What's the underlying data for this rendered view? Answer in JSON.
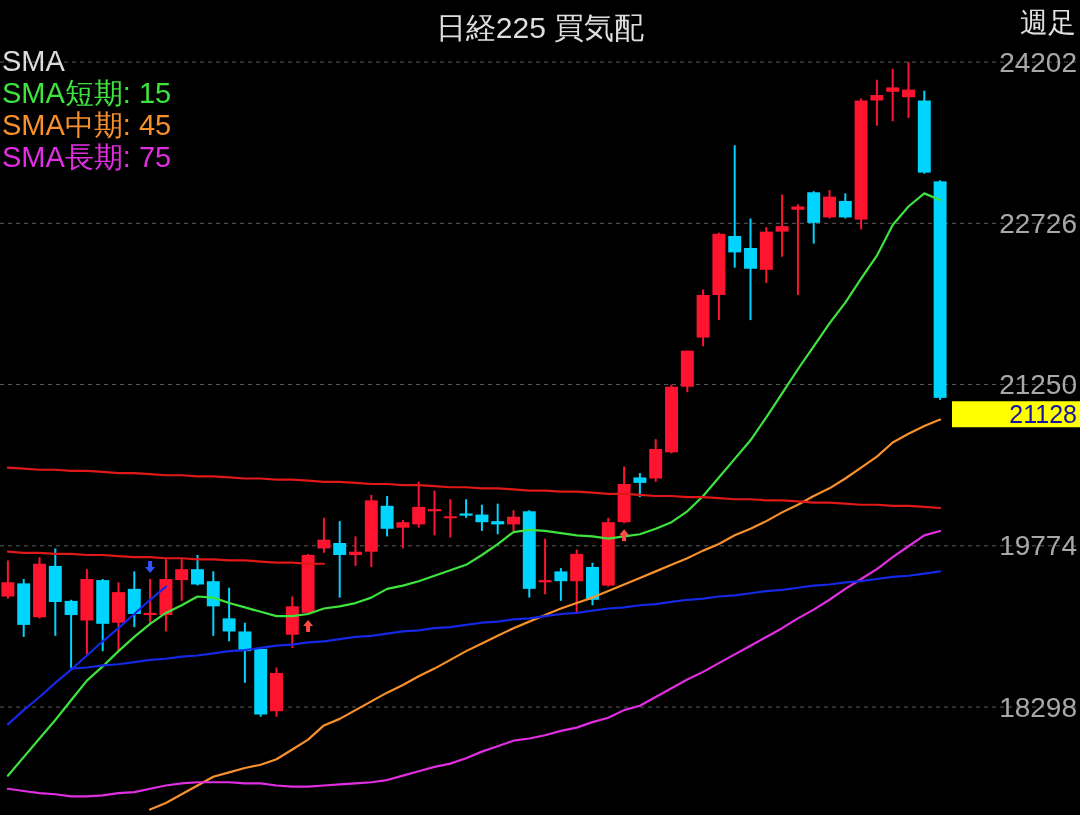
{
  "chart_data": {
    "type": "candlestick",
    "title": "日経225 買気配",
    "subtitle": "週足",
    "legend_title": "SMA",
    "legend": "top left",
    "grid": "y",
    "tick_labels": "y",
    "categories": [
      null,
      null,
      null,
      null,
      null,
      null,
      null,
      null,
      null,
      null,
      null,
      null,
      null,
      null,
      null,
      null,
      null,
      null,
      null,
      null,
      null,
      null,
      null,
      null,
      null,
      null,
      null,
      null,
      null,
      null,
      null,
      null,
      null,
      null,
      null,
      null,
      null,
      null,
      null,
      null,
      null,
      null,
      null,
      null,
      null,
      null,
      null,
      null,
      null,
      null,
      null,
      null,
      null,
      null,
      null,
      null,
      null,
      null,
      null,
      null
    ],
    "ohlc": [
      [
        19310,
        19640,
        19290,
        19440
      ],
      [
        19430,
        19470,
        18940,
        19050
      ],
      [
        19120,
        19670,
        19110,
        19610
      ],
      [
        19590,
        19750,
        18950,
        19260
      ],
      [
        19270,
        19280,
        18650,
        19140
      ],
      [
        19090,
        19560,
        18780,
        19470
      ],
      [
        19460,
        19470,
        18810,
        19060
      ],
      [
        19070,
        19440,
        18810,
        19350
      ],
      [
        19380,
        19540,
        19030,
        19150
      ],
      [
        19140,
        19470,
        19060,
        19160
      ],
      [
        19140,
        19660,
        18990,
        19470
      ],
      [
        19460,
        19660,
        19270,
        19560
      ],
      [
        19560,
        19690,
        19410,
        19420
      ],
      [
        19450,
        19540,
        18950,
        19220
      ],
      [
        19110,
        19390,
        18900,
        18990
      ],
      [
        18990,
        19070,
        18520,
        18810
      ],
      [
        18830,
        18840,
        18210,
        18230
      ],
      [
        18260,
        18660,
        18210,
        18610
      ],
      [
        18960,
        19310,
        18840,
        19220
      ],
      [
        19160,
        19700,
        19150,
        19690
      ],
      [
        19750,
        20030,
        19710,
        19830
      ],
      [
        19800,
        20000,
        19300,
        19690
      ],
      [
        19690,
        19860,
        19590,
        19720
      ],
      [
        19720,
        20240,
        19580,
        20190
      ],
      [
        20140,
        20230,
        19860,
        19930
      ],
      [
        19940,
        20010,
        19750,
        19990
      ],
      [
        19970,
        20360,
        19940,
        20130
      ],
      [
        20090,
        20280,
        19870,
        20110
      ],
      [
        20030,
        20200,
        19850,
        20040
      ],
      [
        20070,
        20200,
        20030,
        20050
      ],
      [
        20060,
        20150,
        19910,
        19990
      ],
      [
        20000,
        20160,
        19880,
        19970
      ],
      [
        19970,
        20100,
        19910,
        20040
      ],
      [
        20090,
        20100,
        19300,
        19380
      ],
      [
        19440,
        19840,
        19330,
        19460
      ],
      [
        19540,
        19570,
        19270,
        19450
      ],
      [
        19450,
        19740,
        19150,
        19700
      ],
      [
        19580,
        19620,
        19230,
        19280
      ],
      [
        19410,
        20030,
        19400,
        19990
      ],
      [
        19990,
        20500,
        19980,
        20340
      ],
      [
        20400,
        20440,
        20220,
        20350
      ],
      [
        20390,
        20750,
        20360,
        20660
      ],
      [
        20630,
        21250,
        20620,
        21230
      ],
      [
        21230,
        21560,
        21180,
        21560
      ],
      [
        21680,
        22120,
        21600,
        22070
      ],
      [
        22070,
        22640,
        21840,
        22630
      ],
      [
        22610,
        23440,
        22320,
        22460
      ],
      [
        22500,
        22770,
        21840,
        22310
      ],
      [
        22300,
        22690,
        22180,
        22650
      ],
      [
        22650,
        22990,
        22420,
        22700
      ],
      [
        22850,
        22900,
        22070,
        22880
      ],
      [
        23010,
        23020,
        22540,
        22730
      ],
      [
        22780,
        23030,
        22770,
        22970
      ],
      [
        22930,
        23000,
        22770,
        22780
      ],
      [
        22760,
        23870,
        22670,
        23850
      ],
      [
        23850,
        24040,
        23620,
        23900
      ],
      [
        23930,
        24140,
        23660,
        23970
      ],
      [
        23880,
        24200,
        23690,
        23950
      ],
      [
        23850,
        23940,
        23180,
        23190
      ],
      [
        23110,
        23120,
        21110,
        21128
      ]
    ],
    "colors": [
      "#ff1430",
      "#00d4ff",
      "#ff1430",
      "#00d4ff",
      "#00d4ff",
      "#ff1430",
      "#00d4ff",
      "#ff1430",
      "#00d4ff",
      "#ff1430",
      "#ff1430",
      "#ff1430",
      "#00d4ff",
      "#00d4ff",
      "#00d4ff",
      "#00d4ff",
      "#00d4ff",
      "#ff1430",
      "#ff1430",
      "#ff1430",
      "#ff1430",
      "#00d4ff",
      "#ff1430",
      "#ff1430",
      "#00d4ff",
      "#ff1430",
      "#ff1430",
      "#ff1430",
      "#ff1430",
      "#00d4ff",
      "#00d4ff",
      "#00d4ff",
      "#ff1430",
      "#00d4ff",
      "#ff1430",
      "#00d4ff",
      "#ff1430",
      "#00d4ff",
      "#ff1430",
      "#ff1430",
      "#00d4ff",
      "#ff1430",
      "#ff1430",
      "#ff1430",
      "#ff1430",
      "#ff1430",
      "#00d4ff",
      "#00d4ff",
      "#ff1430",
      "#ff1430",
      "#ff1430",
      "#00d4ff",
      "#ff1430",
      "#00d4ff",
      "#ff1430",
      "#ff1430",
      "#ff1430",
      "#ff1430",
      "#00d4ff",
      "#00d4ff"
    ],
    "series": [
      {
        "name": "SMA短期: 15",
        "type": "line",
        "color": "#3ee43e",
        "values": [
          17670,
          17840,
          18010,
          18180,
          18360,
          18540,
          18670,
          18810,
          18940,
          19060,
          19160,
          19230,
          19310,
          19300,
          19250,
          19210,
          19170,
          19130,
          19130,
          19150,
          19200,
          19220,
          19250,
          19300,
          19380,
          19410,
          19450,
          19500,
          19550,
          19600,
          19690,
          19790,
          19900,
          19920,
          19910,
          19890,
          19870,
          19860,
          19840,
          19860,
          19880,
          19930,
          19990,
          20090,
          20230,
          20400,
          20570,
          20740,
          20950,
          21170,
          21390,
          21600,
          21810,
          22000,
          22220,
          22430,
          22710,
          22880,
          23000,
          22940
        ]
      },
      {
        "name": "SMA中期: 45",
        "type": "line",
        "color": "#f8902c",
        "values": [
          null,
          null,
          null,
          null,
          null,
          null,
          null,
          null,
          null,
          17360,
          17420,
          17500,
          17580,
          17660,
          17700,
          17740,
          17770,
          17820,
          17910,
          18000,
          18130,
          18190,
          18270,
          18350,
          18430,
          18500,
          18580,
          18650,
          18730,
          18810,
          18880,
          18950,
          19020,
          19080,
          19140,
          19200,
          19250,
          19300,
          19360,
          19420,
          19480,
          19540,
          19600,
          19660,
          19730,
          19790,
          19870,
          19930,
          20000,
          20080,
          20150,
          20230,
          20300,
          20390,
          20490,
          20590,
          20720,
          20800,
          20870,
          20930
        ]
      },
      {
        "name": "SMA長期: 75",
        "type": "line",
        "color": "#e22ee2",
        "values": [
          17550,
          17530,
          17510,
          17500,
          17480,
          17480,
          17490,
          17510,
          17520,
          17550,
          17580,
          17600,
          17610,
          17610,
          17610,
          17600,
          17600,
          17580,
          17570,
          17570,
          17580,
          17590,
          17600,
          17610,
          17630,
          17670,
          17710,
          17750,
          17780,
          17830,
          17890,
          17940,
          17990,
          18010,
          18040,
          18080,
          18110,
          18160,
          18200,
          18270,
          18310,
          18390,
          18470,
          18550,
          18620,
          18700,
          18780,
          18860,
          18940,
          19020,
          19110,
          19190,
          19280,
          19380,
          19470,
          19560,
          19670,
          19770,
          19870,
          19910
        ]
      },
      {
        "type": "line",
        "color": "#e01818",
        "values": [
          20490,
          20480,
          20470,
          20470,
          20460,
          20460,
          20450,
          20440,
          20440,
          20430,
          20420,
          20420,
          20410,
          20410,
          20400,
          20390,
          20390,
          20380,
          20380,
          20370,
          20360,
          20360,
          20350,
          20340,
          20340,
          20330,
          20330,
          20320,
          20310,
          20310,
          20300,
          20300,
          20290,
          20280,
          20280,
          20270,
          20270,
          20260,
          20250,
          20250,
          20240,
          20230,
          20230,
          20220,
          20220,
          20210,
          20200,
          20200,
          20190,
          20190,
          20180,
          20170,
          20170,
          20160,
          20150,
          20150,
          20140,
          20140,
          20130,
          20120
        ]
      },
      {
        "type": "line",
        "color": "#e01818",
        "values": [
          19720,
          19710,
          19710,
          19700,
          19700,
          19690,
          19690,
          19680,
          19670,
          19670,
          19660,
          19660,
          19650,
          19650,
          19640,
          19640,
          19630,
          19620,
          19620,
          19610,
          19610,
          null,
          null,
          null,
          null,
          null,
          null,
          null,
          null,
          null,
          null,
          null,
          null,
          null,
          null,
          null,
          null,
          null,
          null,
          null,
          null,
          null,
          null,
          null,
          null,
          null,
          null,
          null,
          null,
          null,
          null,
          null,
          null,
          null,
          null,
          null,
          null,
          null,
          null,
          null
        ]
      },
      {
        "type": "line",
        "color": "#1428e6",
        "values": [
          18140,
          18270,
          18390,
          18520,
          18640,
          18770,
          18900,
          19020,
          19150,
          19280,
          19400,
          null,
          null,
          null,
          null,
          null,
          null,
          null,
          null,
          null,
          null,
          null,
          null,
          null,
          null,
          null,
          null,
          null,
          null,
          null,
          null,
          null,
          null,
          null,
          null,
          null,
          null,
          null,
          null,
          null,
          null,
          null,
          null,
          null,
          null,
          null,
          null,
          null,
          null,
          null,
          null,
          null,
          null,
          null,
          null,
          null,
          null,
          null,
          null,
          null
        ]
      },
      {
        "type": "line",
        "color": "#1428e6",
        "values": [
          null,
          null,
          null,
          null,
          18650,
          18660,
          18680,
          18690,
          18710,
          18730,
          18740,
          18760,
          18770,
          18790,
          18810,
          18820,
          18840,
          18860,
          18870,
          18890,
          18900,
          18920,
          18940,
          18950,
          18970,
          18990,
          19000,
          19020,
          19030,
          19050,
          19070,
          19080,
          19100,
          19110,
          19130,
          19150,
          19160,
          19180,
          19200,
          19210,
          19230,
          19240,
          19260,
          19280,
          19290,
          19310,
          19320,
          19340,
          19360,
          19370,
          19390,
          19410,
          19420,
          19440,
          19450,
          19470,
          19490,
          19500,
          19520,
          19540
        ]
      }
    ],
    "ylim": [
      17310,
      24770
    ],
    "yticks": [
      18298,
      19774,
      21250,
      22726,
      24202
    ],
    "annotations": [
      "21128"
    ]
  }
}
